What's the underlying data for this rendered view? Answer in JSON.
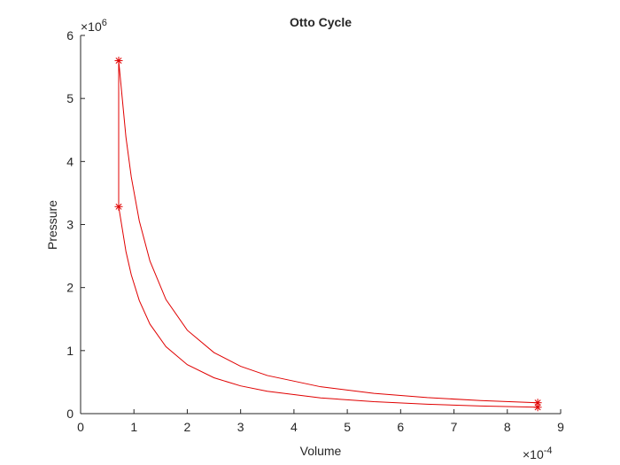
{
  "chart_data": {
    "type": "line",
    "title": "Otto Cycle",
    "x_label": "Volume",
    "y_label": "Pressure",
    "x_exponent": {
      "base": "×10",
      "power": "-4"
    },
    "y_exponent": {
      "base": "×10",
      "power": "6"
    },
    "xlim": [
      0,
      9
    ],
    "xticks": [
      0,
      1,
      2,
      3,
      4,
      5,
      6,
      7,
      8,
      9
    ],
    "ylim": [
      0,
      6
    ],
    "yticks": [
      0,
      1,
      2,
      3,
      4,
      5,
      6
    ],
    "grid": false,
    "series": [
      {
        "color": "#e00000",
        "marker": "none",
        "x": [
          8.57,
          7.5,
          6.5,
          5.5,
          4.5,
          3.5,
          3.0,
          2.5,
          2.0,
          1.6,
          1.3,
          1.1,
          0.95,
          0.85,
          0.714,
          0.714,
          0.85,
          0.95,
          1.1,
          1.3,
          1.6,
          2.0,
          2.5,
          3.0,
          3.5,
          4.5,
          5.5,
          6.5,
          7.5,
          8.57,
          8.57
        ],
        "values": [
          0.101,
          0.122,
          0.149,
          0.189,
          0.25,
          0.355,
          0.44,
          0.569,
          0.777,
          1.062,
          1.42,
          1.794,
          2.202,
          2.573,
          3.284,
          5.6,
          4.386,
          3.754,
          3.058,
          2.421,
          1.81,
          1.323,
          0.969,
          0.751,
          0.605,
          0.426,
          0.321,
          0.254,
          0.208,
          0.173,
          0.101
        ]
      },
      {
        "color": "#e00000",
        "marker": "asterisk",
        "line": false,
        "x": [
          8.57,
          0.714,
          0.714,
          8.57
        ],
        "values": [
          0.101,
          3.284,
          5.6,
          0.173
        ]
      }
    ]
  }
}
